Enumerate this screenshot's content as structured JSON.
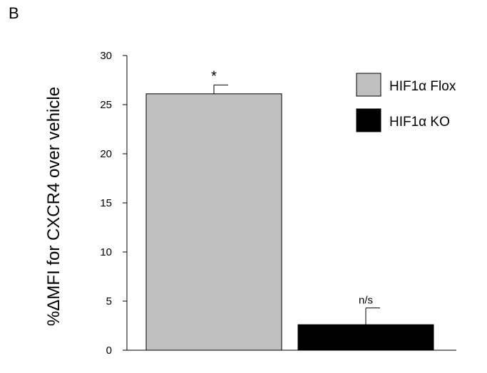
{
  "panel_label": "B",
  "chart_data": {
    "type": "bar",
    "categories": [
      "HIF1α Flox",
      "HIF1α KO"
    ],
    "values": [
      26.1,
      2.6
    ],
    "errors": [
      0.9,
      1.7
    ],
    "annotations": [
      "*",
      "n/s"
    ],
    "colors": [
      "#c0c0c0",
      "#000000"
    ],
    "title": "",
    "xlabel": "",
    "ylabel": "%ΔMFI for CXCR4 over vehicle",
    "ylim": [
      0,
      30
    ],
    "yticks": [
      0,
      5,
      10,
      15,
      20,
      25,
      30
    ],
    "legend": {
      "position": "top-right",
      "entries": [
        "HIF1α Flox",
        "HIF1α KO"
      ]
    },
    "grid": false
  }
}
